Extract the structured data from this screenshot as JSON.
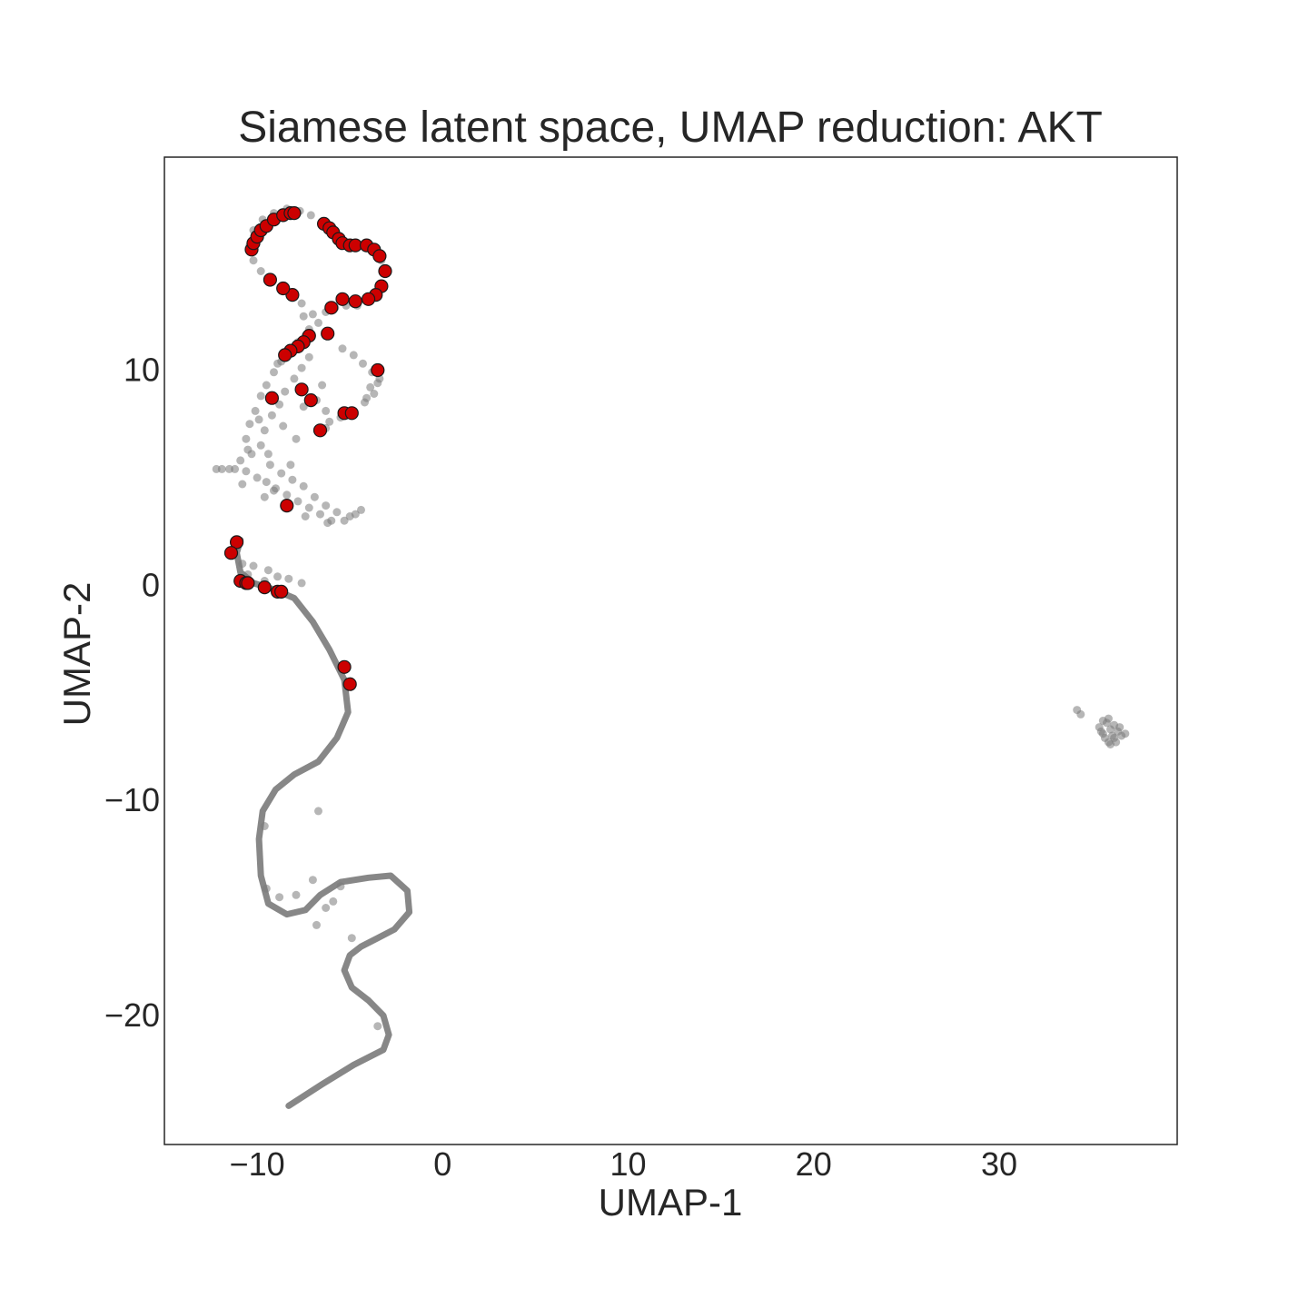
{
  "chart_data": {
    "type": "scatter",
    "title": "Siamese latent space, UMAP reduction: AKT",
    "xlabel": "UMAP-1",
    "ylabel": "UMAP-2",
    "xlim": [
      -15,
      39.6
    ],
    "ylim": [
      -26,
      19.9
    ],
    "xticks": [
      -10,
      0,
      10,
      20,
      30
    ],
    "yticks": [
      -20,
      -10,
      0,
      10
    ],
    "xtick_labels": [
      "−10",
      "0",
      "10",
      "20",
      "30"
    ],
    "ytick_labels": [
      "−20",
      "−10",
      "0",
      "10"
    ],
    "grid": false,
    "series": [
      {
        "color": "#7a7a7a",
        "path_points": [
          [
            -8.3,
            -24.2
          ],
          [
            -6.5,
            -23.2
          ],
          [
            -4.8,
            -22.3
          ],
          [
            -3.2,
            -21.6
          ],
          [
            -2.9,
            -20.9
          ],
          [
            -3.2,
            -20.0
          ],
          [
            -4.0,
            -19.3
          ],
          [
            -4.9,
            -18.7
          ],
          [
            -5.3,
            -17.9
          ],
          [
            -5.0,
            -17.2
          ],
          [
            -4.4,
            -16.8
          ],
          [
            -3.5,
            -16.4
          ],
          [
            -2.6,
            -16.0
          ],
          [
            -1.8,
            -15.2
          ],
          [
            -1.9,
            -14.2
          ],
          [
            -2.8,
            -13.5
          ],
          [
            -4.0,
            -13.6
          ],
          [
            -5.5,
            -13.8
          ],
          [
            -6.6,
            -14.4
          ],
          [
            -7.4,
            -15.1
          ],
          [
            -8.4,
            -15.3
          ],
          [
            -9.4,
            -14.8
          ],
          [
            -9.8,
            -13.5
          ],
          [
            -9.9,
            -11.8
          ],
          [
            -9.7,
            -10.5
          ],
          [
            -9.0,
            -9.5
          ],
          [
            -8.0,
            -8.8
          ],
          [
            -6.7,
            -8.2
          ],
          [
            -5.7,
            -7.1
          ],
          [
            -5.1,
            -5.9
          ],
          [
            -5.3,
            -4.4
          ],
          [
            -6.1,
            -3.0
          ],
          [
            -7.0,
            -1.7
          ],
          [
            -8.0,
            -0.6
          ],
          [
            -9.1,
            -0.2
          ],
          [
            -10.2,
            0.1
          ],
          [
            -10.9,
            0.6
          ],
          [
            -11.1,
            1.5
          ],
          [
            -10.9,
            2.1
          ]
        ],
        "points": [
          [
            -11.5,
            5.4
          ],
          [
            -11.2,
            5.4
          ],
          [
            -10.9,
            5.8
          ],
          [
            -10.6,
            5.3
          ],
          [
            -10.3,
            6.1
          ],
          [
            -10.0,
            5.0
          ],
          [
            -9.8,
            6.5
          ],
          [
            -9.5,
            4.8
          ],
          [
            -9.3,
            5.6
          ],
          [
            -9.0,
            4.5
          ],
          [
            -8.7,
            5.2
          ],
          [
            -8.4,
            4.2
          ],
          [
            -8.1,
            4.9
          ],
          [
            -7.8,
            3.9
          ],
          [
            -7.5,
            4.6
          ],
          [
            -7.2,
            3.6
          ],
          [
            -6.9,
            4.1
          ],
          [
            -6.6,
            3.3
          ],
          [
            -6.3,
            3.7
          ],
          [
            -6.0,
            3.0
          ],
          [
            -5.7,
            3.4
          ],
          [
            -5.3,
            3.0
          ],
          [
            -5.0,
            3.2
          ],
          [
            -4.7,
            3.3
          ],
          [
            -4.4,
            3.5
          ],
          [
            -10.6,
            6.8
          ],
          [
            -10.4,
            7.5
          ],
          [
            -10.1,
            8.1
          ],
          [
            -9.8,
            8.8
          ],
          [
            -9.5,
            9.3
          ],
          [
            -9.1,
            9.9
          ],
          [
            -8.7,
            10.4
          ],
          [
            -8.3,
            10.9
          ],
          [
            -7.8,
            11.3
          ],
          [
            -7.4,
            11.6
          ],
          [
            -9.6,
            7.2
          ],
          [
            -9.2,
            7.9
          ],
          [
            -8.8,
            8.4
          ],
          [
            -8.5,
            9.0
          ],
          [
            -8.0,
            9.6
          ],
          [
            -7.6,
            10.1
          ],
          [
            -7.2,
            10.6
          ],
          [
            -6.8,
            8.6
          ],
          [
            -6.5,
            9.3
          ],
          [
            -6.3,
            8.1
          ],
          [
            -6.1,
            7.6
          ],
          [
            -6.7,
            7.1
          ],
          [
            -5.4,
            11.0
          ],
          [
            -4.8,
            10.7
          ],
          [
            -4.3,
            10.3
          ],
          [
            -3.8,
            9.9
          ],
          [
            -3.5,
            9.4
          ],
          [
            -3.7,
            8.9
          ],
          [
            -4.2,
            8.5
          ],
          [
            -4.8,
            8.1
          ],
          [
            -5.5,
            7.8
          ],
          [
            -6.3,
            7.3
          ],
          [
            -3.9,
            9.2
          ],
          [
            -4.1,
            8.7
          ],
          [
            -3.4,
            9.6
          ],
          [
            -7.0,
            12.6
          ],
          [
            -7.6,
            13.1
          ],
          [
            -8.1,
            13.4
          ],
          [
            -8.7,
            13.7
          ],
          [
            -9.3,
            14.1
          ],
          [
            -9.8,
            14.6
          ],
          [
            -10.2,
            15.1
          ],
          [
            -10.4,
            15.8
          ],
          [
            -10.2,
            16.5
          ],
          [
            -9.7,
            17.0
          ],
          [
            -9.1,
            17.3
          ],
          [
            -8.4,
            17.5
          ],
          [
            -7.7,
            17.4
          ],
          [
            -7.1,
            17.2
          ],
          [
            -6.5,
            16.8
          ],
          [
            -6.0,
            16.3
          ],
          [
            -5.4,
            15.9
          ],
          [
            -4.8,
            15.8
          ],
          [
            -4.1,
            15.7
          ],
          [
            -3.6,
            15.5
          ],
          [
            -3.3,
            15.1
          ],
          [
            -3.1,
            14.6
          ],
          [
            -3.2,
            14.0
          ],
          [
            -3.5,
            13.5
          ],
          [
            -4.0,
            13.2
          ],
          [
            -4.6,
            13.0
          ],
          [
            -5.2,
            13.0
          ],
          [
            -5.8,
            12.9
          ],
          [
            -6.3,
            12.7
          ],
          [
            -6.7,
            12.2
          ],
          [
            -7.2,
            11.9
          ],
          [
            -7.5,
            12.5
          ],
          [
            -8.9,
            10.3
          ],
          [
            -9.9,
            7.7
          ],
          [
            -10.5,
            6.3
          ],
          [
            -11.9,
            5.4
          ],
          [
            -12.2,
            5.4
          ],
          [
            -6.2,
            2.9
          ],
          [
            -7.4,
            3.2
          ],
          [
            -8.4,
            3.6
          ],
          [
            -9.6,
            4.1
          ],
          [
            -10.8,
            4.7
          ],
          [
            -9.1,
            4.4
          ],
          [
            -8.2,
            5.6
          ],
          [
            -9.4,
            6.1
          ],
          [
            -7.9,
            6.8
          ],
          [
            -8.6,
            7.4
          ],
          [
            -7.5,
            8.3
          ],
          [
            -10.8,
            1.0
          ],
          [
            -10.5,
            0.5
          ],
          [
            -9.6,
            0.2
          ],
          [
            -8.9,
            0.4
          ],
          [
            -8.3,
            0.3
          ],
          [
            -7.6,
            0.1
          ],
          [
            -10.2,
            0.9
          ],
          [
            -9.4,
            0.7
          ],
          [
            -6.8,
            -15.8
          ],
          [
            -6.3,
            -15.0
          ],
          [
            -5.9,
            -14.7
          ],
          [
            -5.5,
            -14.0
          ],
          [
            -4.9,
            -16.4
          ],
          [
            -3.5,
            -20.5
          ],
          [
            -6.7,
            -10.5
          ],
          [
            -7.0,
            -13.7
          ],
          [
            -7.9,
            -14.4
          ],
          [
            -8.8,
            -14.5
          ],
          [
            -9.5,
            -14.1
          ],
          [
            -9.6,
            -11.2
          ],
          [
            34.2,
            -5.8
          ],
          [
            34.4,
            -6.0
          ],
          [
            35.4,
            -6.6
          ],
          [
            35.6,
            -6.9
          ],
          [
            35.8,
            -6.4
          ],
          [
            36.0,
            -6.7
          ],
          [
            36.2,
            -7.1
          ],
          [
            35.9,
            -7.3
          ],
          [
            35.6,
            -6.3
          ],
          [
            36.4,
            -6.8
          ],
          [
            36.6,
            -7.0
          ],
          [
            36.2,
            -6.5
          ],
          [
            35.7,
            -7.1
          ],
          [
            36.0,
            -7.4
          ],
          [
            36.3,
            -7.3
          ],
          [
            35.5,
            -6.8
          ],
          [
            36.5,
            -6.6
          ],
          [
            36.8,
            -6.9
          ],
          [
            35.9,
            -6.2
          ],
          [
            36.1,
            -7.0
          ]
        ]
      },
      {
        "color": "#cc0000",
        "points": [
          [
            -10.3,
            15.6
          ],
          [
            -10.2,
            15.9
          ],
          [
            -10.0,
            16.2
          ],
          [
            -9.8,
            16.5
          ],
          [
            -9.5,
            16.7
          ],
          [
            -9.1,
            17.0
          ],
          [
            -8.6,
            17.2
          ],
          [
            -8.2,
            17.3
          ],
          [
            -8.0,
            17.3
          ],
          [
            -6.4,
            16.8
          ],
          [
            -6.1,
            16.6
          ],
          [
            -5.9,
            16.4
          ],
          [
            -5.6,
            16.1
          ],
          [
            -5.4,
            15.9
          ],
          [
            -5.0,
            15.8
          ],
          [
            -4.7,
            15.8
          ],
          [
            -4.1,
            15.8
          ],
          [
            -3.7,
            15.6
          ],
          [
            -3.4,
            15.3
          ],
          [
            -3.1,
            14.6
          ],
          [
            -3.3,
            13.9
          ],
          [
            -3.6,
            13.5
          ],
          [
            -4.0,
            13.3
          ],
          [
            -4.7,
            13.2
          ],
          [
            -5.4,
            13.3
          ],
          [
            -6.0,
            12.9
          ],
          [
            -8.1,
            13.5
          ],
          [
            -8.6,
            13.8
          ],
          [
            -9.3,
            14.2
          ],
          [
            -6.2,
            11.7
          ],
          [
            -7.2,
            11.6
          ],
          [
            -7.5,
            11.3
          ],
          [
            -7.8,
            11.1
          ],
          [
            -8.2,
            10.9
          ],
          [
            -8.5,
            10.7
          ],
          [
            -3.5,
            10.0
          ],
          [
            -9.2,
            8.7
          ],
          [
            -7.6,
            9.1
          ],
          [
            -7.1,
            8.6
          ],
          [
            -5.3,
            8.0
          ],
          [
            -4.9,
            8.0
          ],
          [
            -6.6,
            7.2
          ],
          [
            -8.4,
            3.7
          ],
          [
            -11.1,
            2.0
          ],
          [
            -11.4,
            1.5
          ],
          [
            -10.9,
            0.2
          ],
          [
            -10.6,
            0.1
          ],
          [
            -10.5,
            0.1
          ],
          [
            -9.6,
            -0.1
          ],
          [
            -8.9,
            -0.3
          ],
          [
            -8.7,
            -0.3
          ],
          [
            -5.3,
            -3.8
          ],
          [
            -5.0,
            -4.6
          ]
        ]
      }
    ]
  }
}
